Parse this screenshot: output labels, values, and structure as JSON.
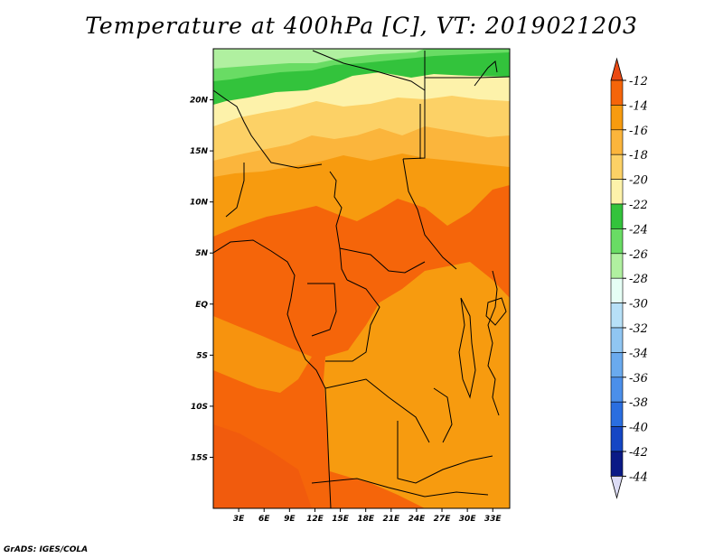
{
  "title": "Temperature at 400hPa [C], VT: 2019021203",
  "credit": "GrADS: IGES/COLA",
  "chart_data": {
    "type": "heatmap",
    "title": "Temperature at 400hPa [C], VT: 2019021203",
    "variable": "Temperature",
    "units": "C",
    "level": "400hPa",
    "valid_time": "2019021203",
    "xlim_lon": [
      0,
      35
    ],
    "ylim_lat": [
      -20,
      25
    ],
    "x_ticks": [
      {
        "value": 3,
        "label": "3E"
      },
      {
        "value": 6,
        "label": "6E"
      },
      {
        "value": 9,
        "label": "9E"
      },
      {
        "value": 12,
        "label": "12E"
      },
      {
        "value": 15,
        "label": "15E"
      },
      {
        "value": 18,
        "label": "18E"
      },
      {
        "value": 21,
        "label": "21E"
      },
      {
        "value": 24,
        "label": "24E"
      },
      {
        "value": 27,
        "label": "27E"
      },
      {
        "value": 30,
        "label": "30E"
      },
      {
        "value": 33,
        "label": "33E"
      }
    ],
    "y_ticks": [
      {
        "value": 20,
        "label": "20N"
      },
      {
        "value": 15,
        "label": "15N"
      },
      {
        "value": 10,
        "label": "10N"
      },
      {
        "value": 5,
        "label": "5N"
      },
      {
        "value": 0,
        "label": "EQ"
      },
      {
        "value": -5,
        "label": "5S"
      },
      {
        "value": -10,
        "label": "10S"
      },
      {
        "value": -15,
        "label": "15S"
      }
    ],
    "colorbar": {
      "orientation": "vertical",
      "placement": "right",
      "levels": [
        -12,
        -14,
        -16,
        -18,
        -20,
        -22,
        -24,
        -26,
        -28,
        -30,
        -32,
        -34,
        -36,
        -38,
        -40,
        -42,
        -44
      ],
      "labels": [
        "-12",
        "-14",
        "-16",
        "-18",
        "-20",
        "-22",
        "-24",
        "-26",
        "-28",
        "-30",
        "-32",
        "-34",
        "-36",
        "-38",
        "-40",
        "-42",
        "-44"
      ],
      "colors": [
        "#ea4a14",
        "#f5650a",
        "#f79b0f",
        "#fbb53c",
        "#fcd166",
        "#fdf2aa",
        "#33c33c",
        "#69dc64",
        "#b0f0a0",
        "#e6fff5",
        "#b7e0f7",
        "#90c6f2",
        "#6aaaee",
        "#4b8fea",
        "#2a6ee0",
        "#1546c4",
        "#0a1a86",
        "#dcdcf5"
      ]
    },
    "bands": [
      {
        "label": "<= -26",
        "color": "#b0f0a0",
        "lat_from": 25,
        "lat_to": 23.2
      },
      {
        "label": "-26 to -24",
        "color": "#69dc64",
        "lat_from": 24.2,
        "lat_to": 23.4
      },
      {
        "label": "-24 to -22",
        "color": "#33c33c",
        "lat_from": 23.4,
        "lat_to": 21.0
      },
      {
        "label": "-22 to -20",
        "color": "#fdf2aa",
        "lat_from": 21.0,
        "lat_to": 18.8
      },
      {
        "label": "-20 to -18",
        "color": "#fcd166",
        "lat_from": 18.8,
        "lat_to": 15.4
      },
      {
        "label": "-18 to -16",
        "color": "#fbb53c",
        "lat_from": 15.4,
        "lat_to": 12.5
      },
      {
        "label": "-16 to -14",
        "color": "#f79b0f",
        "lat_from": 12.5,
        "lat_to": 8.5
      },
      {
        "label": "-14 to -12",
        "color": "#f5650a",
        "lat_from": 8.5,
        "lat_to": -20
      }
    ]
  }
}
